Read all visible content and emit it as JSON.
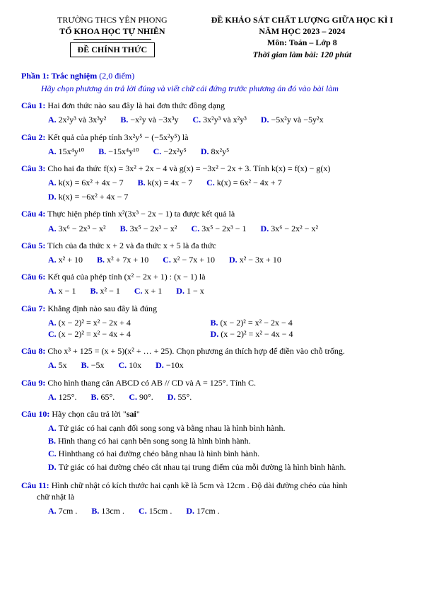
{
  "header": {
    "left_line1": "TRƯỜNG THCS YÊN PHONG",
    "left_line2": "TỔ KHOA HỌC TỰ NHIÊN",
    "left_box": "ĐỀ CHÍNH THỨC",
    "right_line1": "ĐỀ KHẢO SÁT CHẤT LƯỢNG GIỮA HỌC KÌ I",
    "right_line2": "NĂM HỌC 2023 – 2024",
    "right_line3": "Môn: Toán – Lớp 8",
    "right_line4": "Thời gian làm bài: 120 phút"
  },
  "part1": {
    "title_bold": "Phần 1: Trắc nghiệm",
    "title_tail": " (2,0 điểm)",
    "subtitle": "Hãy chọn phương án trả lời đúng và viết chữ cái đứng trước phương án đó vào bài làm"
  },
  "q1": {
    "label": "Câu 1:",
    "stem": " Hai đơn thức nào sau đây là hai đơn thức đồng dạng",
    "A": "2x²y³ và 3x³y²",
    "B": "−x²y và −3x³y",
    "C": "3x²y³ và x²y³",
    "D": "−5x²y và −5y²x"
  },
  "q2": {
    "label": "Câu 2:",
    "stem": " Kết quả của phép tính 3x²y⁵ − (−5x²y⁵) là",
    "A": "15x⁴y¹⁰",
    "B": "−15x⁴y¹⁰",
    "C": "−2x²y⁵",
    "D": "8x²y⁵"
  },
  "q3": {
    "label": "Câu 3:",
    "stem": " Cho hai đa thức f(x) = 3x² + 2x − 4 và g(x) = −3x² − 2x + 3. Tính k(x) = f(x) − g(x)",
    "A": "k(x) = 6x² + 4x − 7",
    "B": "k(x) = 4x − 7",
    "C": "k(x) = 6x² − 4x + 7",
    "D": "k(x) = −6x² + 4x − 7"
  },
  "q4": {
    "label": "Câu 4:",
    "stem": " Thực hiện phép tính x²(3x³ − 2x − 1) ta được kết quả là",
    "A": "3x⁶ − 2x³ − x²",
    "B": "3x⁵ − 2x³ − x²",
    "C": "3x⁵ − 2x³ − 1",
    "D": "3x⁶ − 2x² − x²"
  },
  "q5": {
    "label": "Câu 5:",
    "stem": " Tích của đa thức  x + 2 và đa thức  x + 5 là đa thức",
    "A": "x² + 10",
    "B": "x² + 7x + 10",
    "C": "x² − 7x + 10",
    "D": "x² − 3x + 10"
  },
  "q6": {
    "label": "Câu 6:",
    "stem": " Kết quả của phép tính (x² − 2x + 1) : (x − 1) là",
    "A": "x − 1",
    "B": "x² − 1",
    "C": "x + 1",
    "D": "1 − x"
  },
  "q7": {
    "label": "Câu 7:",
    "stem": " Khẳng định nào sau đây là đúng",
    "A": "(x − 2)² = x² − 2x + 4",
    "B": "(x − 2)² = x² − 2x − 4",
    "C": "(x − 2)² = x² − 4x + 4",
    "D": "(x − 2)² = x² − 4x − 4"
  },
  "q8": {
    "label": "Câu 8:",
    "stem": " Cho x³ + 125 = (x + 5)(x² + … + 25). Chọn phương án thích hợp để điền vào chỗ trống.",
    "A": "5x",
    "B": "−5x",
    "C": "10x",
    "D": "−10x"
  },
  "q9": {
    "label": "Câu 9:",
    "stem": " Cho hình thang cân ABCD có AB // CD và A = 125°. Tính C.",
    "A": "125°.",
    "B": "65°.",
    "C": "90°.",
    "D": "55°."
  },
  "q10": {
    "label": "Câu 10:",
    "stem_pre": " Hãy chọn câu trả lời \"",
    "stem_sai": "sai",
    "stem_post": "\"",
    "A": "Tứ giác có hai cạnh đối song song và bằng nhau là hình bình hành.",
    "B": "Hình thang có hai cạnh bên song song là hình bình hành.",
    "C": "Hìnhthang có hai đường chéo bằng nhau là hình bình hành.",
    "D": "Tứ giác có hai đường chéo cắt nhau tại trung điểm của mỗi đường là hình bình hành."
  },
  "q11": {
    "label": "Câu 11:",
    "stem1": " Hình chữ nhật có kích thước hai cạnh kề là 5cm và 12cm . Độ dài đường chéo của hình",
    "stem2": "chữ nhật là",
    "A": "7cm .",
    "B": "13cm .",
    "C": "15cm .",
    "D": "17cm ."
  }
}
